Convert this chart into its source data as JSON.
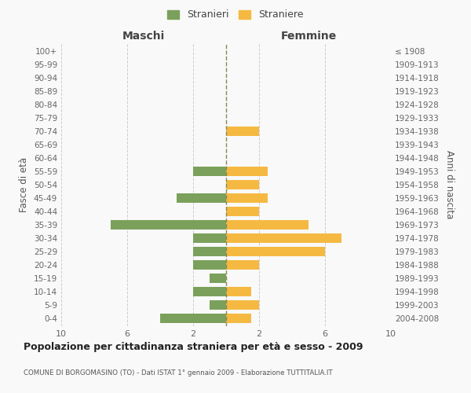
{
  "age_groups": [
    "0-4",
    "5-9",
    "10-14",
    "15-19",
    "20-24",
    "25-29",
    "30-34",
    "35-39",
    "40-44",
    "45-49",
    "50-54",
    "55-59",
    "60-64",
    "65-69",
    "70-74",
    "75-79",
    "80-84",
    "85-89",
    "90-94",
    "95-99",
    "100+"
  ],
  "birth_years": [
    "2004-2008",
    "1999-2003",
    "1994-1998",
    "1989-1993",
    "1984-1988",
    "1979-1983",
    "1974-1978",
    "1969-1973",
    "1964-1968",
    "1959-1963",
    "1954-1958",
    "1949-1953",
    "1944-1948",
    "1939-1943",
    "1934-1938",
    "1929-1933",
    "1924-1928",
    "1919-1923",
    "1914-1918",
    "1909-1913",
    "≤ 1908"
  ],
  "males": [
    4,
    1,
    2,
    1,
    2,
    2,
    2,
    7,
    0,
    3,
    0,
    2,
    0,
    0,
    0,
    0,
    0,
    0,
    0,
    0,
    0
  ],
  "females": [
    1.5,
    2,
    1.5,
    0,
    2,
    6,
    7,
    5,
    2,
    2.5,
    2,
    2.5,
    0,
    0,
    2,
    0,
    0,
    0,
    0,
    0,
    0
  ],
  "male_color": "#7ba05b",
  "female_color": "#f5b942",
  "grid_color": "#cccccc",
  "dashed_line_color": "#888855",
  "title": "Popolazione per cittadinanza straniera per età e sesso - 2009",
  "subtitle": "COMUNE DI BORGOMASINO (TO) - Dati ISTAT 1° gennaio 2009 - Elaborazione TUTTITALIA.IT",
  "xlabel_left": "Maschi",
  "xlabel_right": "Femmine",
  "ylabel_left": "Fasce di età",
  "ylabel_right": "Anni di nascita",
  "legend_stranieri": "Stranieri",
  "legend_straniere": "Straniere",
  "xlim": 10,
  "background": "#f9f9f9"
}
